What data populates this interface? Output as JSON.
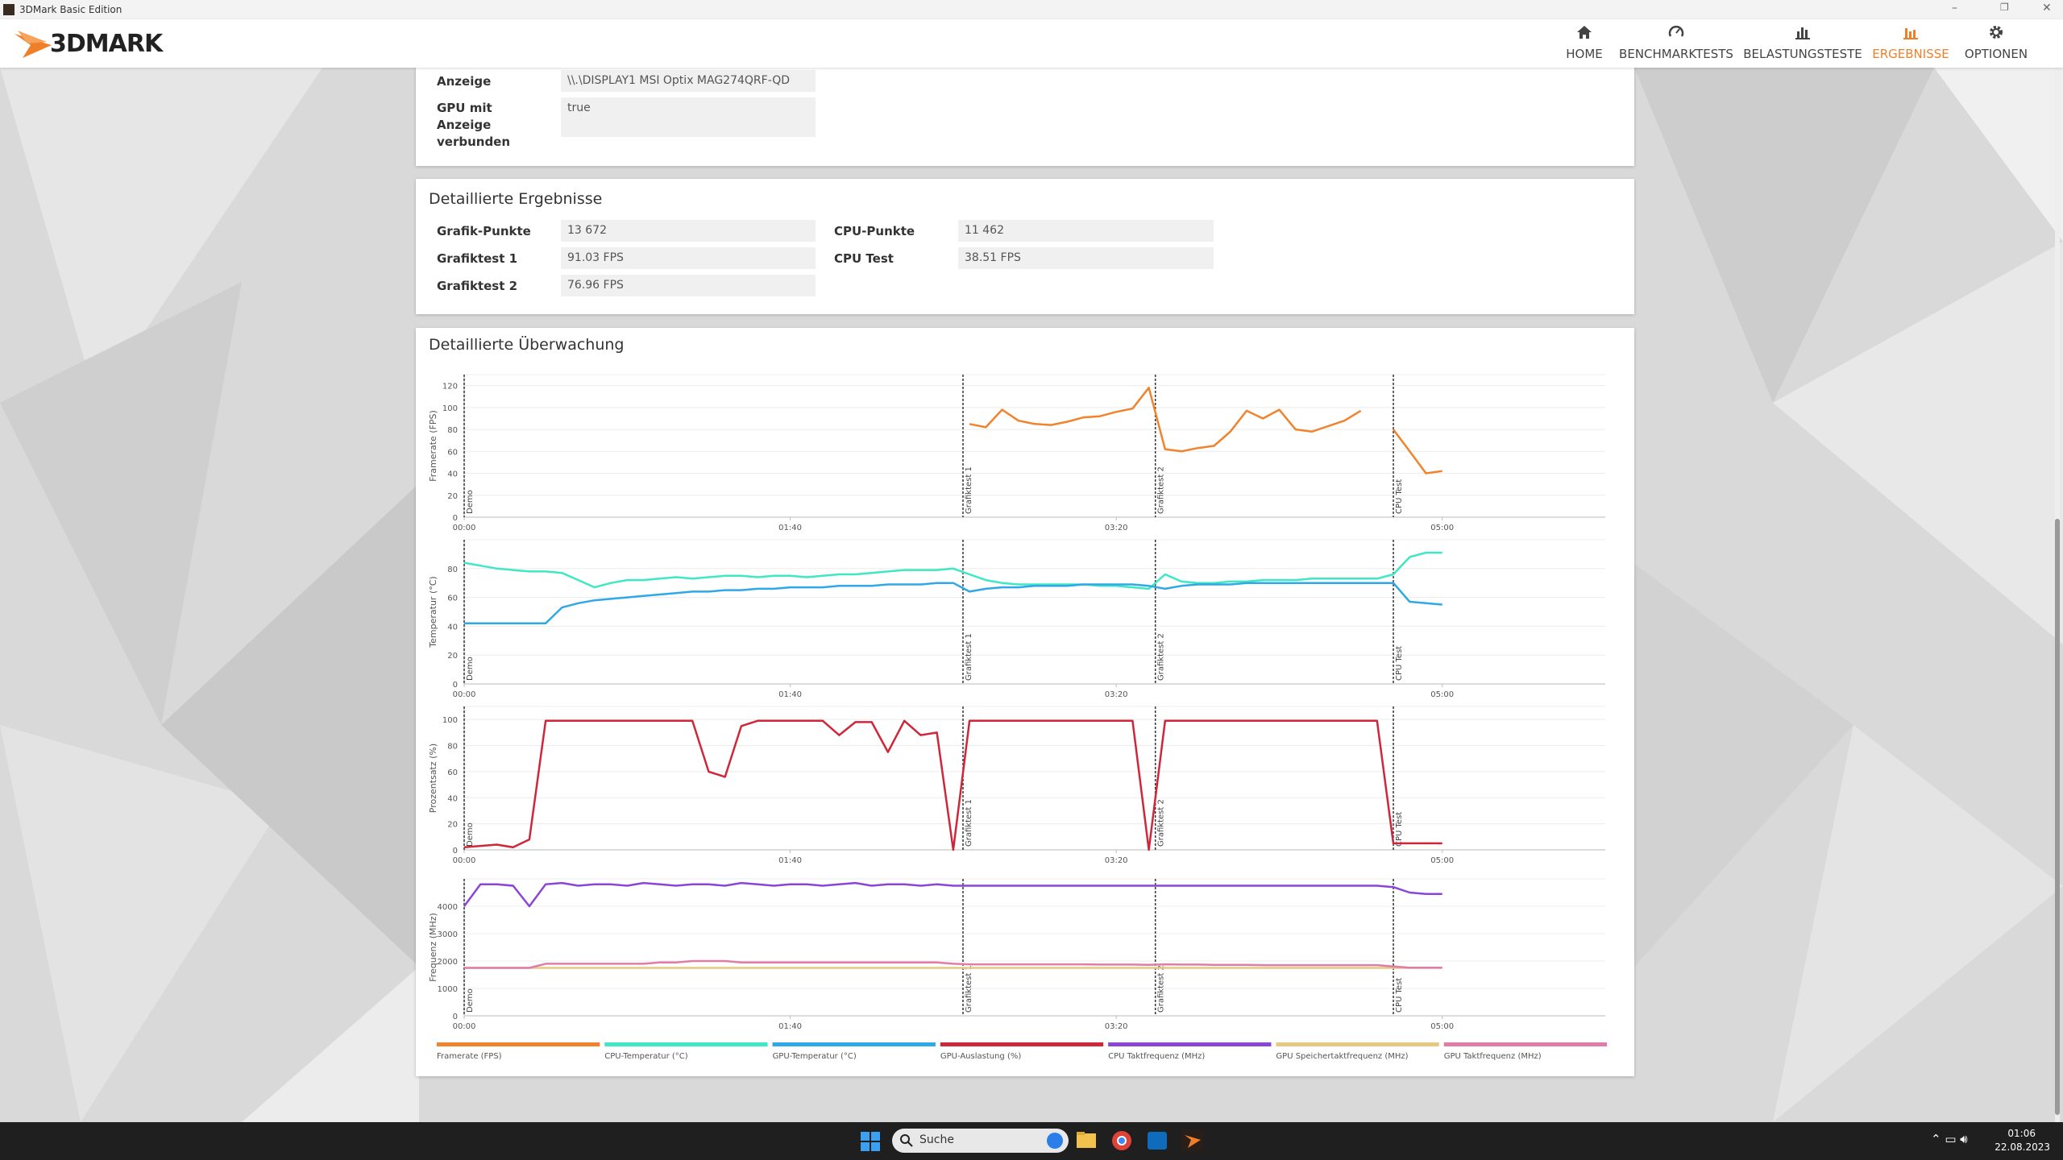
{
  "window": {
    "title": "3DMark Basic Edition"
  },
  "nav": {
    "logo": "3DMARK",
    "items": [
      "HOME",
      "BENCHMARKTESTS",
      "BELASTUNGSTESTE",
      "ERGEBNISSE",
      "OPTIONEN"
    ]
  },
  "display_info": {
    "rows": [
      {
        "label": "Anzeige",
        "value": "\\\\.\\DISPLAY1 MSI Optix MAG274QRF-QD"
      },
      {
        "label": "GPU mit Anzeige verbunden",
        "value": "true"
      }
    ]
  },
  "results": {
    "title": "Detaillierte Ergebnisse",
    "left": [
      {
        "label": "Grafik-Punkte",
        "value": "13 672"
      },
      {
        "label": "Grafiktest 1",
        "value": "91.03 FPS"
      },
      {
        "label": "Grafiktest 2",
        "value": "76.96 FPS"
      }
    ],
    "right": [
      {
        "label": "CPU-Punkte",
        "value": "11 462"
      },
      {
        "label": "CPU Test",
        "value": "38.51 FPS"
      }
    ]
  },
  "monitoring": {
    "title": "Detaillierte Überwachung",
    "markers": [
      {
        "x": 0,
        "label": "Demo"
      },
      {
        "x": 153,
        "label": "Grafiktest 1"
      },
      {
        "x": 212,
        "label": "Grafiktest 2"
      },
      {
        "x": 285,
        "label": "CPU Test"
      }
    ]
  },
  "chart_data": [
    {
      "type": "line",
      "y_label": "Framerate (FPS)",
      "grid": true,
      "x": [
        0,
        5,
        10,
        15,
        20,
        25,
        30,
        35,
        40,
        45,
        50,
        55,
        60,
        65,
        70,
        75,
        80,
        85,
        90,
        95,
        100,
        105,
        110,
        115,
        120,
        125,
        130,
        135,
        140,
        145,
        150,
        155,
        160,
        165,
        170,
        175,
        180,
        185,
        190,
        195,
        200,
        205,
        210,
        215,
        220,
        225,
        230,
        235,
        240,
        245,
        250,
        255,
        260,
        265,
        270,
        275,
        280,
        285,
        290,
        295,
        300
      ],
      "xlim": [
        0,
        350
      ],
      "xticks": [
        {
          "value": 0,
          "label": "00:00"
        },
        {
          "value": 100,
          "label": "01:40"
        },
        {
          "value": 200,
          "label": "03:20"
        },
        {
          "value": 300,
          "label": "05:00"
        }
      ],
      "ylim": [
        0,
        130
      ],
      "yticks": [
        0,
        20,
        40,
        60,
        80,
        100,
        120
      ],
      "series": [
        {
          "name": "Framerate (FPS)",
          "color": "#f0832c",
          "values": [
            null,
            null,
            null,
            null,
            null,
            null,
            null,
            null,
            null,
            null,
            null,
            null,
            null,
            null,
            null,
            null,
            null,
            null,
            null,
            null,
            null,
            null,
            null,
            null,
            null,
            null,
            null,
            null,
            null,
            null,
            null,
            85,
            82,
            98,
            88,
            85,
            84,
            87,
            91,
            92,
            96,
            99,
            118,
            62,
            60,
            63,
            65,
            78,
            97,
            90,
            98,
            80,
            78,
            83,
            88,
            97,
            null,
            80,
            60,
            40,
            42
          ]
        }
      ]
    },
    {
      "type": "line",
      "y_label": "Temperatur (°C)",
      "grid": true,
      "x": [
        0,
        5,
        10,
        15,
        20,
        25,
        30,
        35,
        40,
        45,
        50,
        55,
        60,
        65,
        70,
        75,
        80,
        85,
        90,
        95,
        100,
        105,
        110,
        115,
        120,
        125,
        130,
        135,
        140,
        145,
        150,
        155,
        160,
        165,
        170,
        175,
        180,
        185,
        190,
        195,
        200,
        205,
        210,
        215,
        220,
        225,
        230,
        235,
        240,
        245,
        250,
        255,
        260,
        265,
        270,
        275,
        280,
        285,
        290,
        295,
        300
      ],
      "xlim": [
        0,
        350
      ],
      "xticks": [
        {
          "value": 0,
          "label": "00:00"
        },
        {
          "value": 100,
          "label": "01:40"
        },
        {
          "value": 200,
          "label": "03:20"
        },
        {
          "value": 300,
          "label": "05:00"
        }
      ],
      "ylim": [
        0,
        100
      ],
      "yticks": [
        0,
        20,
        40,
        60,
        80
      ],
      "series": [
        {
          "name": "CPU-Temperatur (°C)",
          "color": "#3ee8c4",
          "values": [
            84,
            82,
            80,
            79,
            78,
            78,
            77,
            72,
            67,
            70,
            72,
            72,
            73,
            74,
            73,
            74,
            75,
            75,
            74,
            75,
            75,
            74,
            75,
            76,
            76,
            77,
            78,
            79,
            79,
            79,
            80,
            76,
            72,
            70,
            69,
            69,
            69,
            69,
            69,
            68,
            68,
            67,
            66,
            76,
            71,
            70,
            70,
            71,
            71,
            72,
            72,
            72,
            73,
            73,
            73,
            73,
            73,
            76,
            88,
            91,
            91
          ]
        },
        {
          "name": "GPU-Temperatur (°C)",
          "color": "#2ea8e6",
          "values": [
            42,
            42,
            42,
            42,
            42,
            42,
            53,
            56,
            58,
            59,
            60,
            61,
            62,
            63,
            64,
            64,
            65,
            65,
            66,
            66,
            67,
            67,
            67,
            68,
            68,
            68,
            69,
            69,
            69,
            70,
            70,
            64,
            66,
            67,
            67,
            68,
            68,
            68,
            69,
            69,
            69,
            69,
            68,
            66,
            68,
            69,
            69,
            69,
            70,
            70,
            70,
            70,
            70,
            70,
            70,
            70,
            70,
            70,
            57,
            56,
            55
          ]
        }
      ]
    },
    {
      "type": "line",
      "y_label": "Prozentsatz (%)",
      "grid": true,
      "x": [
        0,
        5,
        10,
        15,
        20,
        25,
        30,
        35,
        40,
        45,
        50,
        55,
        60,
        65,
        70,
        75,
        80,
        85,
        90,
        95,
        100,
        105,
        110,
        115,
        120,
        125,
        130,
        135,
        140,
        145,
        150,
        155,
        160,
        165,
        170,
        175,
        180,
        185,
        190,
        195,
        200,
        205,
        210,
        215,
        220,
        225,
        230,
        235,
        240,
        245,
        250,
        255,
        260,
        265,
        270,
        275,
        280,
        285,
        290,
        295,
        300
      ],
      "xlim": [
        0,
        350
      ],
      "xticks": [
        {
          "value": 0,
          "label": "00:00"
        },
        {
          "value": 100,
          "label": "01:40"
        },
        {
          "value": 200,
          "label": "03:20"
        },
        {
          "value": 300,
          "label": "05:00"
        }
      ],
      "ylim": [
        0,
        110
      ],
      "yticks": [
        0,
        20,
        40,
        60,
        80,
        100
      ],
      "series": [
        {
          "name": "GPU-Auslastung (%)",
          "color": "#d0263a",
          "values": [
            2,
            3,
            4,
            2,
            8,
            99,
            99,
            99,
            99,
            99,
            99,
            99,
            99,
            99,
            99,
            60,
            56,
            95,
            99,
            99,
            99,
            99,
            99,
            88,
            98,
            98,
            75,
            99,
            88,
            90,
            0,
            99,
            99,
            99,
            99,
            99,
            99,
            99,
            99,
            99,
            99,
            99,
            0,
            99,
            99,
            99,
            99,
            99,
            99,
            99,
            99,
            99,
            99,
            99,
            99,
            99,
            99,
            5,
            5,
            5,
            5
          ]
        }
      ]
    },
    {
      "type": "line",
      "y_label": "Frequenz (MHz)",
      "grid": true,
      "x": [
        0,
        5,
        10,
        15,
        20,
        25,
        30,
        35,
        40,
        45,
        50,
        55,
        60,
        65,
        70,
        75,
        80,
        85,
        90,
        95,
        100,
        105,
        110,
        115,
        120,
        125,
        130,
        135,
        140,
        145,
        150,
        155,
        160,
        165,
        170,
        175,
        180,
        185,
        190,
        195,
        200,
        205,
        210,
        215,
        220,
        225,
        230,
        235,
        240,
        245,
        250,
        255,
        260,
        265,
        270,
        275,
        280,
        285,
        290,
        295,
        300
      ],
      "xlim": [
        0,
        350
      ],
      "xticks": [
        {
          "value": 0,
          "label": "00:00"
        },
        {
          "value": 100,
          "label": "01:40"
        },
        {
          "value": 200,
          "label": "03:20"
        },
        {
          "value": 300,
          "label": "05:00"
        }
      ],
      "ylim": [
        0,
        5000
      ],
      "yticks": [
        0,
        1000,
        2000,
        3000,
        4000
      ],
      "series": [
        {
          "name": "CPU Taktfrequenz (MHz)",
          "color": "#8b45d6",
          "values": [
            4000,
            4800,
            4800,
            4750,
            4000,
            4800,
            4850,
            4750,
            4800,
            4800,
            4750,
            4850,
            4800,
            4750,
            4800,
            4800,
            4750,
            4850,
            4800,
            4750,
            4800,
            4800,
            4750,
            4800,
            4850,
            4750,
            4800,
            4800,
            4750,
            4800,
            4750,
            4750,
            4750,
            4750,
            4750,
            4750,
            4750,
            4750,
            4750,
            4750,
            4750,
            4750,
            4750,
            4750,
            4750,
            4750,
            4750,
            4750,
            4750,
            4750,
            4750,
            4750,
            4750,
            4750,
            4750,
            4750,
            4750,
            4700,
            4500,
            4450,
            4450
          ]
        },
        {
          "name": "GPU Speichertaktfrequenz (MHz)",
          "color": "#e6c883",
          "values": [
            1750,
            1750,
            1750,
            1750,
            1750,
            1750,
            1750,
            1750,
            1750,
            1750,
            1750,
            1750,
            1750,
            1750,
            1750,
            1750,
            1750,
            1750,
            1750,
            1750,
            1750,
            1750,
            1750,
            1750,
            1750,
            1750,
            1750,
            1750,
            1750,
            1750,
            1750,
            1750,
            1750,
            1750,
            1750,
            1750,
            1750,
            1750,
            1750,
            1750,
            1750,
            1750,
            1750,
            1750,
            1750,
            1750,
            1750,
            1750,
            1750,
            1750,
            1750,
            1750,
            1750,
            1750,
            1750,
            1750,
            1750,
            1750,
            1750,
            1750,
            1750
          ]
        },
        {
          "name": "GPU Taktfrequenz (MHz)",
          "color": "#e07ca8",
          "values": [
            1750,
            1750,
            1750,
            1750,
            1750,
            1900,
            1900,
            1900,
            1900,
            1900,
            1900,
            1900,
            1950,
            1950,
            2000,
            2000,
            2000,
            1950,
            1950,
            1950,
            1950,
            1950,
            1950,
            1950,
            1950,
            1950,
            1950,
            1950,
            1950,
            1950,
            1900,
            1880,
            1880,
            1880,
            1880,
            1880,
            1880,
            1880,
            1880,
            1870,
            1870,
            1870,
            1860,
            1880,
            1870,
            1870,
            1860,
            1860,
            1860,
            1850,
            1850,
            1850,
            1850,
            1850,
            1850,
            1850,
            1850,
            1800,
            1760,
            1760,
            1760
          ]
        }
      ]
    }
  ],
  "taskbar": {
    "search": "Suche",
    "time": "01:06",
    "date": "22.08.2023"
  }
}
